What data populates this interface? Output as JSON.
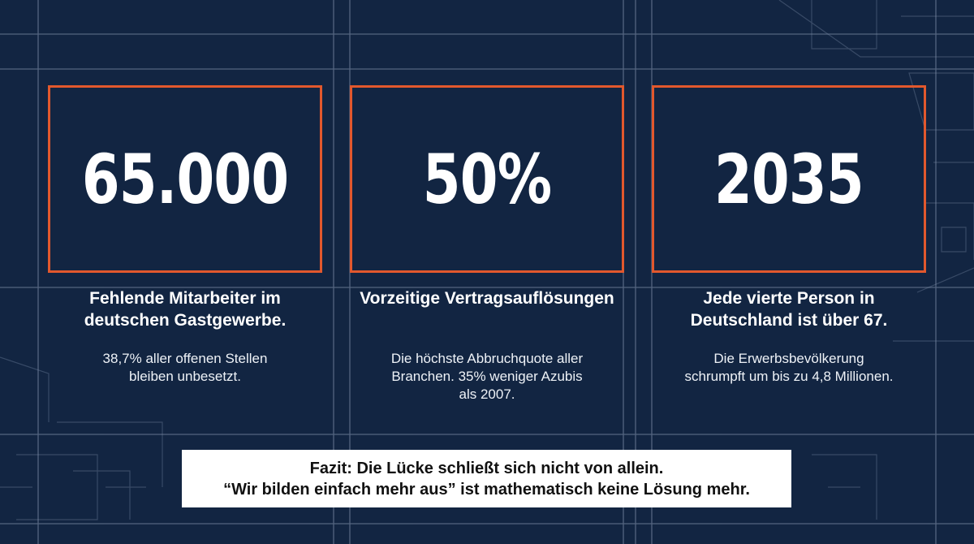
{
  "colors": {
    "background": "#122542",
    "accent_border": "#e2582d",
    "text": "#ffffff",
    "banner_background": "#ffffff",
    "banner_text": "#111111",
    "grid_lines": "#8a9ab3"
  },
  "stats": [
    {
      "number": "65.000",
      "heading": "Fehlende Mitarbeiter im deutschen Gastgewerbe.",
      "description": "38,7% aller offenen Stellen bleiben unbesetzt."
    },
    {
      "number": "50%",
      "heading": "Vorzeitige Vertragsauflösungen",
      "description": "Die höchste Abbruchquote aller Branchen. 35% weniger Azubis als 2007."
    },
    {
      "number": "2035",
      "heading": "Jede vierte Person in Deutschland ist über 67.",
      "description": "Die Erwerbsbevölkerung schrumpft um bis zu 4,8 Millionen."
    }
  ],
  "conclusion": {
    "line1": "Fazit: Die Lücke schließt sich nicht von allein.",
    "line2": "“Wir bilden einfach mehr aus” ist mathematisch keine Lösung mehr."
  }
}
